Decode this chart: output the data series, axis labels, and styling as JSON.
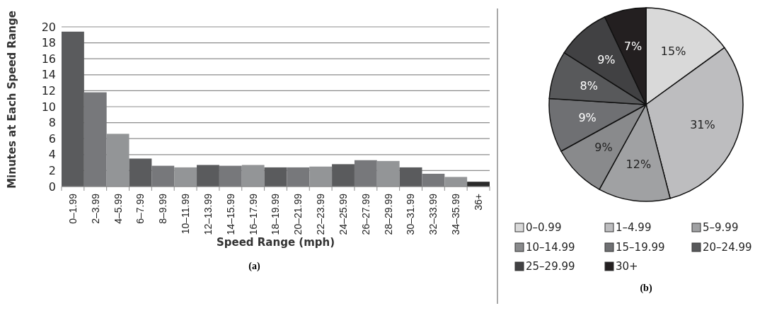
{
  "chart_data": [
    {
      "type": "bar",
      "xlabel": "Speed Range (mph)",
      "ylabel": "Minutes at Each Speed Range",
      "categories": [
        "0–1.99",
        "2–3.99",
        "4–5.99",
        "6–7.99",
        "8–9.99",
        "10–11.99",
        "12–13.99",
        "14–15.99",
        "16–17.99",
        "18–19.99",
        "20–21.99",
        "22–23.99",
        "24–25.99",
        "26–27.99",
        "28–29.99",
        "30–31.99",
        "32–33.99",
        "34–35.99",
        "36+"
      ],
      "values": [
        19.4,
        11.8,
        6.6,
        3.5,
        2.6,
        2.4,
        2.7,
        2.6,
        2.7,
        2.4,
        2.4,
        2.5,
        2.8,
        3.3,
        3.2,
        2.4,
        1.6,
        1.2,
        0.6
      ],
      "colors": [
        "#5a5b5d",
        "#77787b",
        "#939597",
        "#5a5b5d",
        "#77787b",
        "#939597",
        "#5a5b5d",
        "#77787b",
        "#939597",
        "#5a5b5d",
        "#77787b",
        "#939597",
        "#5a5b5d",
        "#77787b",
        "#939597",
        "#5a5b5d",
        "#77787b",
        "#939597",
        "#2a2a2a"
      ],
      "ylim": [
        0,
        20
      ],
      "yticks": [
        0,
        2,
        4,
        6,
        8,
        10,
        12,
        14,
        16,
        18,
        20
      ],
      "grid": "y",
      "annotations": [
        "(a)"
      ]
    },
    {
      "type": "pie",
      "categories": [
        "0–0.99",
        "1–4.99",
        "5–9.99",
        "10–14.99",
        "15–19.99",
        "20–24.99",
        "25–29.99",
        "30+"
      ],
      "values": [
        15,
        31,
        12,
        9,
        9,
        8,
        9,
        7
      ],
      "value_labels": [
        "15%",
        "31%",
        "12%",
        "9%",
        "9%",
        "8%",
        "9%",
        "7%"
      ],
      "colors": [
        "#d9d9d9",
        "#bdbdbf",
        "#a0a1a3",
        "#898a8c",
        "#6f7073",
        "#58595b",
        "#414143",
        "#231f20"
      ],
      "legend": "bottom",
      "annotations": [
        "(b)"
      ]
    }
  ]
}
